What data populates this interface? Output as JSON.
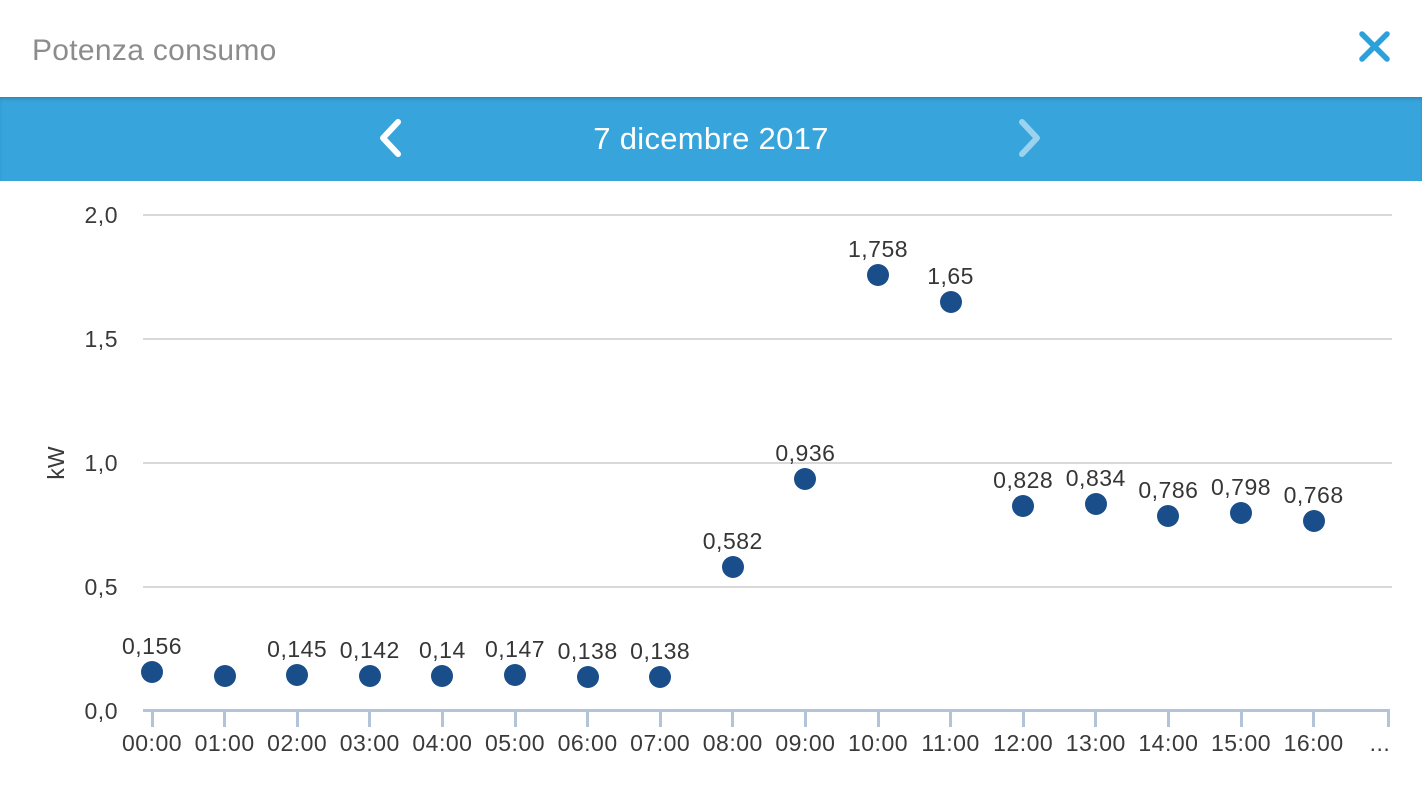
{
  "window": {
    "title": "Potenza consumo"
  },
  "date_nav": {
    "label": "7 dicembre 2017"
  },
  "chart_data": {
    "type": "scatter",
    "title": "Potenza consumo",
    "xlabel": "",
    "ylabel": "kW",
    "x": [
      "00:00",
      "01:00",
      "02:00",
      "03:00",
      "04:00",
      "05:00",
      "06:00",
      "07:00",
      "08:00",
      "09:00",
      "10:00",
      "11:00",
      "12:00",
      "13:00",
      "14:00",
      "15:00",
      "16:00"
    ],
    "x_overflow_label": "...",
    "values": [
      0.156,
      0.14,
      0.145,
      0.142,
      0.14,
      0.147,
      0.138,
      0.138,
      0.582,
      0.936,
      1.758,
      1.65,
      0.828,
      0.834,
      0.786,
      0.798,
      0.768
    ],
    "point_labels": [
      "0,156",
      "",
      "0,145",
      "0,142",
      "0,14",
      "0,147",
      "0,138",
      "0,138",
      "0,582",
      "0,936",
      "1,758",
      "1,65",
      "0,828",
      "0,834",
      "0,786",
      "0,798",
      "0,768"
    ],
    "yticks": [
      {
        "value": 0.0,
        "label": "0,0"
      },
      {
        "value": 0.5,
        "label": "0,5"
      },
      {
        "value": 1.0,
        "label": "1,0"
      },
      {
        "value": 1.5,
        "label": "1,5"
      },
      {
        "value": 2.0,
        "label": "2,0"
      }
    ],
    "ylim": [
      0,
      2.13
    ],
    "grid": "horizontal",
    "legend": "none",
    "colors": {
      "point": "#1a4e8a",
      "axis_line": "#b3c4d8",
      "gridline": "#d9d9d9",
      "accent_bar": "#37a4dc",
      "close_icon": "#2aa0dc",
      "title_text": "#8c8c8c"
    }
  }
}
